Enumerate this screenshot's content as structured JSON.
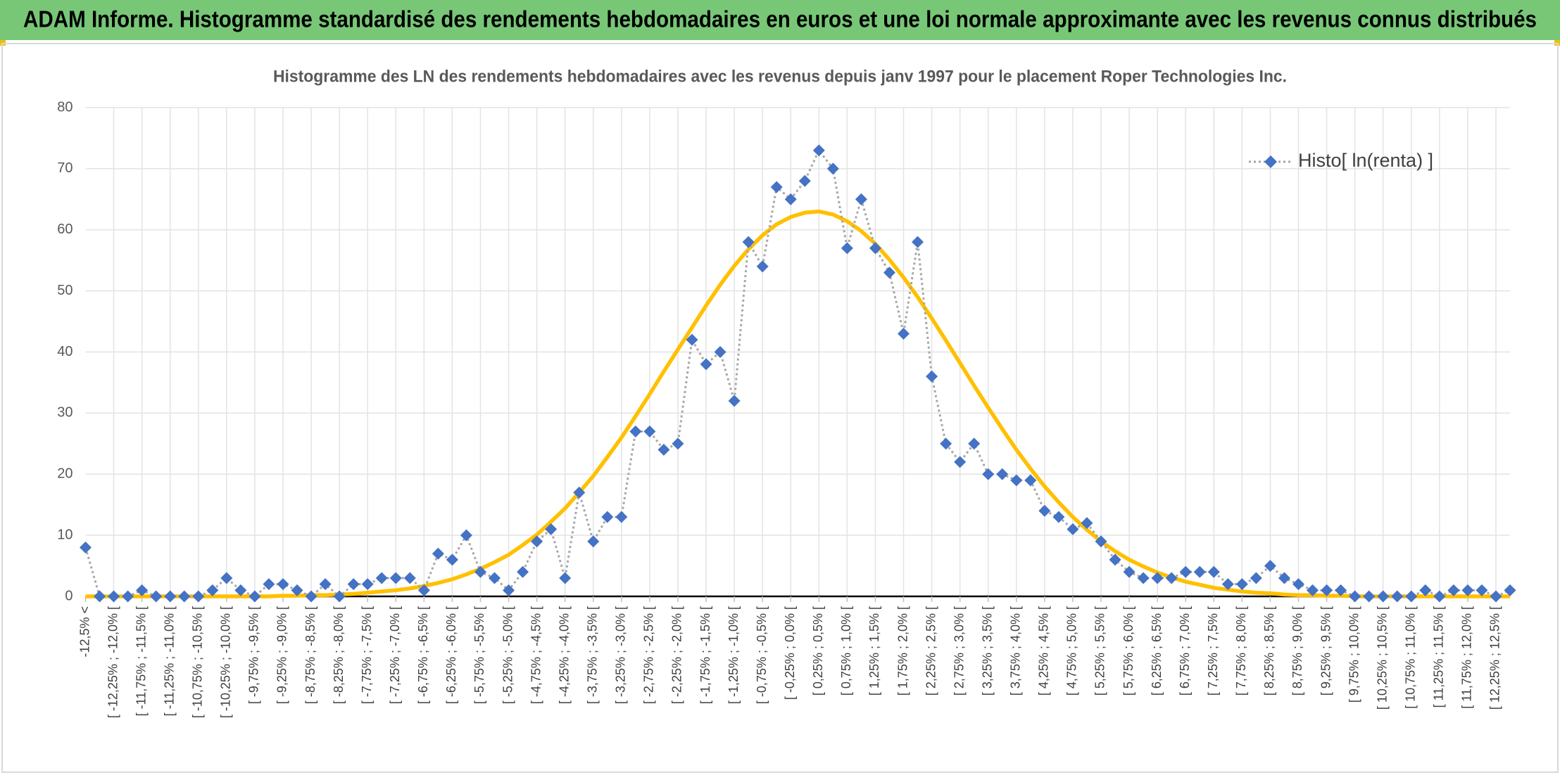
{
  "header": {
    "title": "ADAM Informe. Histogramme standardisé des rendements hebdomadaires en euros et une loi normale approximante avec les revenus connus distribués"
  },
  "chart_data": {
    "type": "line",
    "title": "Histogramme des LN des rendements hebdomadaires avec les revenus depuis janv 1997 pour le placement Roper Technologies Inc.",
    "categories": [
      "-12,5% <",
      null,
      "[ -12,25% ; -12,0% [",
      null,
      "[ -11,75% ; -11,5% [",
      null,
      "[ -11,25% ; -11,0% [",
      null,
      "[ -10,75% ; -10,5% [",
      null,
      "[ -10,25% ; -10,0% [",
      null,
      "[ -9,75% ; -9,5% [",
      null,
      "[ -9,25% ; -9,0% [",
      null,
      "[ -8,75% ; -8,5% [",
      null,
      "[ -8,25% ; -8,0% [",
      null,
      "[ -7,75% ; -7,5% [",
      null,
      "[ -7,25% ; -7,0% [",
      null,
      "[ -6,75% ; -6,5% [",
      null,
      "[ -6,25% ; -6,0% [",
      null,
      "[ -5,75% ; -5,5% [",
      null,
      "[ -5,25% ; -5,0% [",
      null,
      "[ -4,75% ; -4,5% [",
      null,
      "[ -4,25% ; -4,0% [",
      null,
      "[ -3,75% ; -3,5% [",
      null,
      "[ -3,25% ; -3,0% [",
      null,
      "[ -2,75% ; -2,5% [",
      null,
      "[ -2,25% ; -2,0% [",
      null,
      "[ -1,75% ; -1,5% [",
      null,
      "[ -1,25% ; -1,0% [",
      null,
      "[ -0,75% ; -0,5% [",
      null,
      "[ -0,25% ; 0,0% [",
      null,
      "[ 0,25% ; 0,5% [",
      null,
      "[ 0,75% ; 1,0% [",
      null,
      "[ 1,25% ; 1,5% [",
      null,
      "[ 1,75% ; 2,0% [",
      null,
      "[ 2,25% ; 2,5% [",
      null,
      "[ 2,75% ; 3,0% [",
      null,
      "[ 3,25% ; 3,5% [",
      null,
      "[ 3,75% ; 4,0% [",
      null,
      "[ 4,25% ; 4,5% [",
      null,
      "[ 4,75% ; 5,0% [",
      null,
      "[ 5,25% ; 5,5% [",
      null,
      "[ 5,75% ; 6,0% [",
      null,
      "[ 6,25% ; 6,5% [",
      null,
      "[ 6,75% ; 7,0% [",
      null,
      "[ 7,25% ; 7,5% [",
      null,
      "[ 7,75% ; 8,0% [",
      null,
      "[ 8,25% ; 8,5% [",
      null,
      "[ 8,75% ; 9,0% [",
      null,
      "[ 9,25% ; 9,5% [",
      null,
      "[ 9,75% ; 10,0% [",
      null,
      "[ 10,25% ; 10,5% [",
      null,
      "[ 10,75% ; 11,0% [",
      null,
      "[ 11,25% ; 11,5% [",
      null,
      "[ 11,75% ; 12,0% [",
      null,
      "[ 12,25% ; 12,5% [",
      null
    ],
    "series": [
      {
        "name": "Histo[ ln(renta) ]",
        "color": "#4472c4",
        "line_color": "#a6a6a6",
        "marker": "diamond",
        "line_style": "dotted",
        "values": [
          8,
          0,
          0,
          0,
          1,
          0,
          0,
          0,
          0,
          1,
          3,
          1,
          0,
          2,
          2,
          1,
          0,
          2,
          0,
          2,
          2,
          3,
          3,
          3,
          1,
          7,
          6,
          10,
          4,
          3,
          1,
          4,
          9,
          11,
          3,
          17,
          9,
          13,
          13,
          27,
          27,
          24,
          25,
          42,
          38,
          40,
          32,
          58,
          54,
          67,
          65,
          68,
          73,
          70,
          57,
          65,
          57,
          53,
          43,
          58,
          36,
          25,
          22,
          25,
          20,
          20,
          19,
          19,
          14,
          13,
          11,
          12,
          9,
          6,
          4,
          3,
          3,
          3,
          4,
          4,
          4,
          2,
          2,
          3,
          5,
          3,
          2,
          1,
          1,
          1,
          0,
          0,
          0,
          0,
          0,
          1,
          0,
          1,
          1,
          1,
          0,
          1
        ]
      },
      {
        "color": "#ffc000",
        "marker": "none",
        "line_style": "solid",
        "values": [
          0,
          0,
          0,
          0,
          0,
          0,
          0,
          0,
          0,
          0,
          0,
          0,
          0,
          0,
          0.1,
          0.1,
          0.2,
          0.2,
          0.3,
          0.4,
          0.6,
          0.8,
          1.0,
          1.3,
          1.7,
          2.2,
          2.8,
          3.6,
          4.5,
          5.6,
          6.8,
          8.4,
          10.1,
          12.2,
          14.4,
          17.0,
          19.7,
          22.8,
          26.0,
          29.5,
          33.1,
          36.8,
          40.4,
          44.0,
          47.6,
          51.0,
          54.1,
          56.8,
          59.1,
          60.9,
          62.1,
          62.8,
          63.0,
          62.5,
          61.4,
          59.8,
          57.7,
          55.1,
          52.2,
          49.0,
          45.5,
          41.9,
          38.2,
          34.5,
          30.9,
          27.4,
          24.0,
          20.9,
          18.0,
          15.4,
          13.0,
          10.9,
          9.0,
          7.4,
          6.0,
          4.9,
          3.9,
          3.1,
          2.4,
          1.9,
          1.4,
          1.1,
          0.8,
          0.6,
          0.5,
          0.3,
          0.2,
          0.2,
          0.1,
          0.1,
          0,
          0,
          0,
          0,
          0,
          0,
          0,
          0,
          0,
          0,
          0,
          0
        ]
      }
    ],
    "ylim": [
      0,
      80
    ],
    "yticks": [
      0,
      10,
      20,
      30,
      40,
      50,
      60,
      70,
      80
    ],
    "grid": true,
    "legend": "top-right"
  }
}
